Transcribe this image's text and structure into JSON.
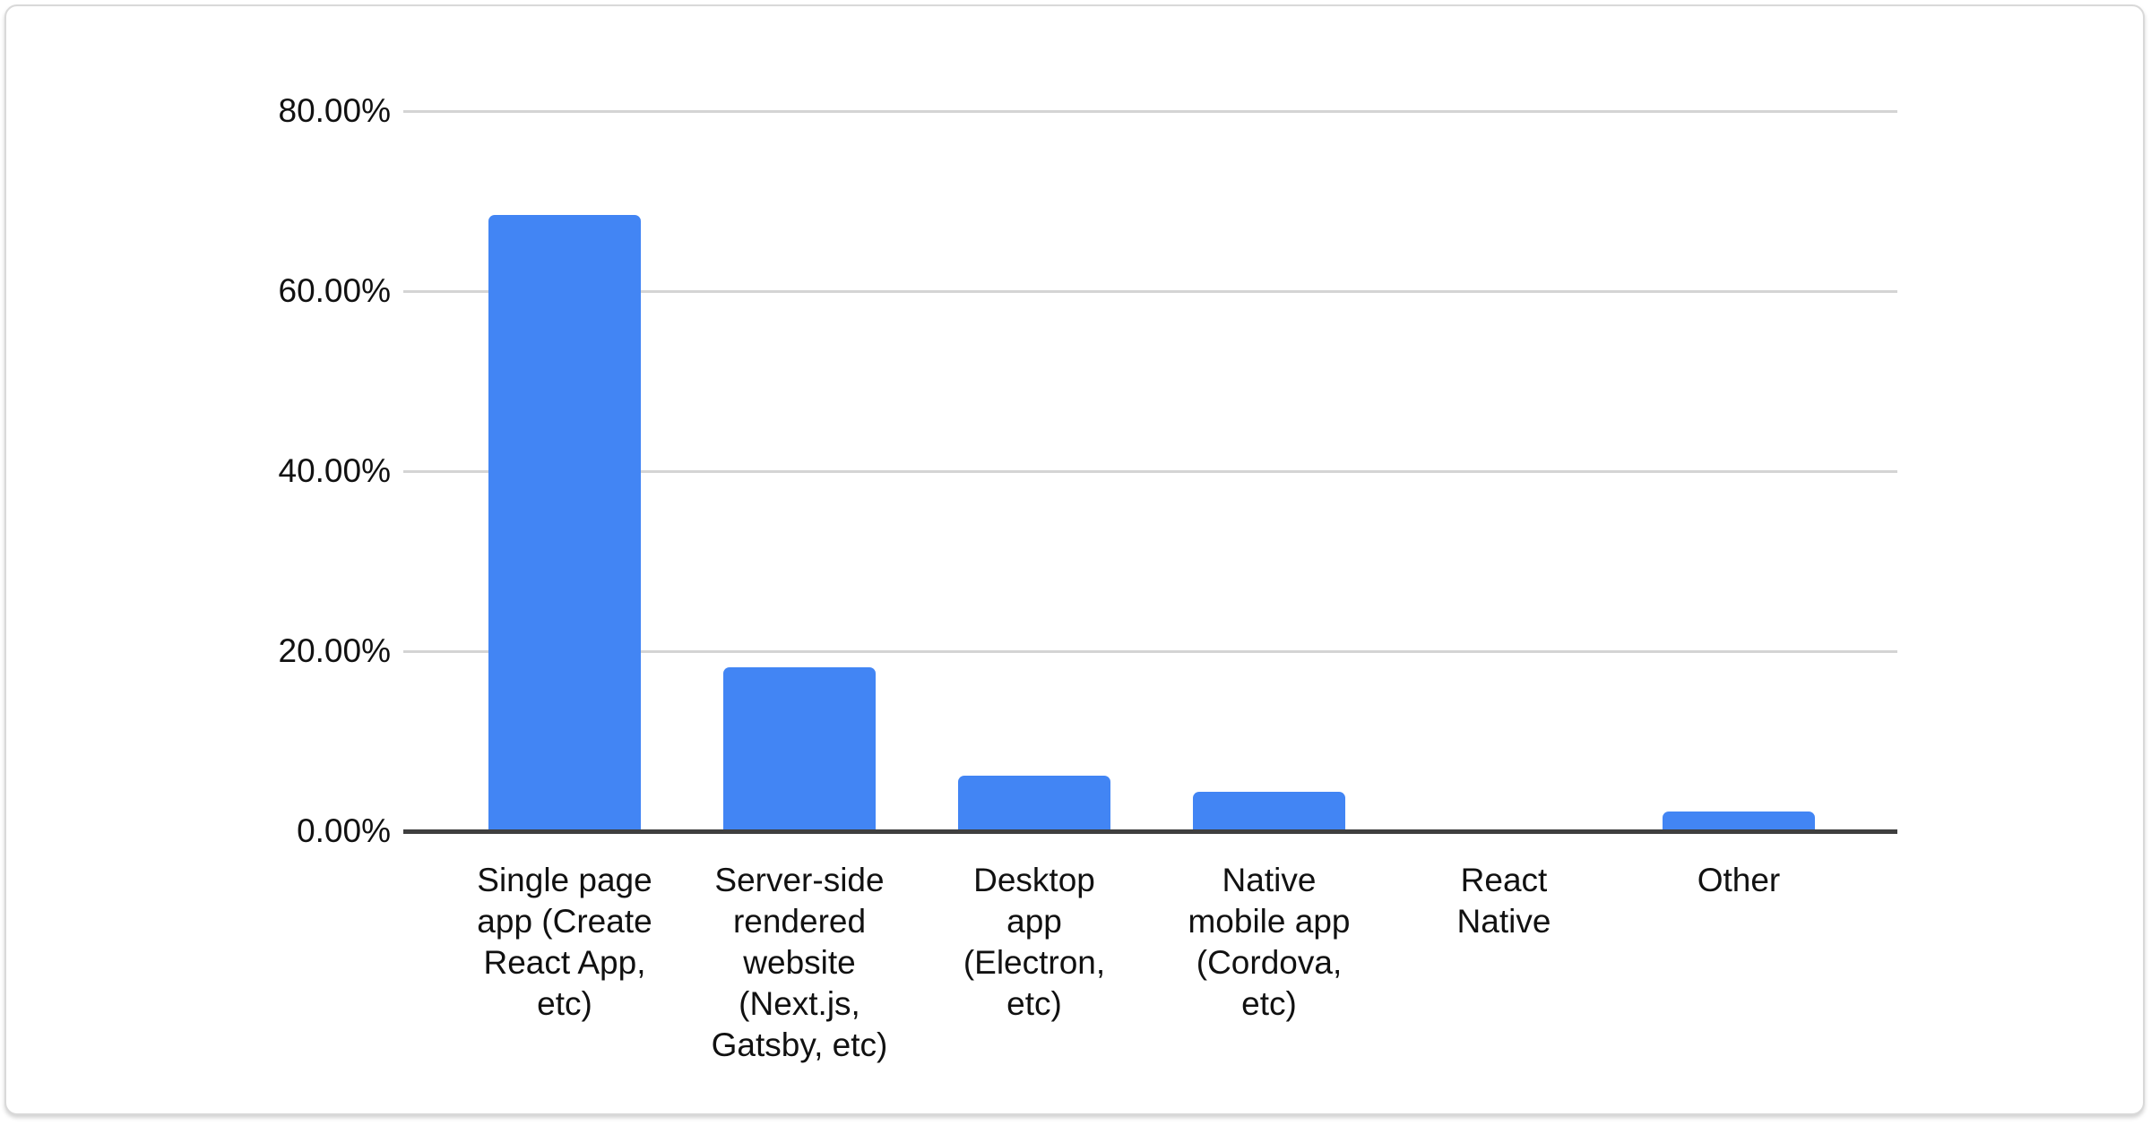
{
  "chart_data": {
    "type": "bar",
    "title": "",
    "xlabel": "",
    "ylabel": "",
    "legend": "none",
    "grid": true,
    "ylim": [
      0,
      80
    ],
    "unit": "%",
    "bar_color": "#4285f4",
    "axis_line_color": "#3f3f3f",
    "gridline_color": "#d4d4d4",
    "label_color": "#111111",
    "categories": [
      "Single page app (Create React App, etc)",
      "Server-side rendered website (Next.js, Gatsby, etc)",
      "Desktop app (Electron, etc)",
      "Native mobile app (Cordova, etc)",
      "React Native",
      "Other"
    ],
    "category_label_lines": [
      "Single page\napp (Create\nReact App,\netc)",
      "Server-side\nrendered\nwebsite\n(Next.js,\nGatsby, etc)",
      "Desktop\napp\n(Electron,\netc)",
      "Native\nmobile app\n(Cordova,\netc)",
      "React\nNative",
      "Other"
    ],
    "values": [
      68.5,
      18.2,
      6.2,
      4.4,
      0,
      2.2
    ],
    "y_ticks": [
      {
        "label": "80.00%",
        "value": 80
      },
      {
        "label": "60.00%",
        "value": 60
      },
      {
        "label": "40.00%",
        "value": 40
      },
      {
        "label": "20.00%",
        "value": 20
      },
      {
        "label": "0.00%",
        "value": 0
      }
    ]
  }
}
